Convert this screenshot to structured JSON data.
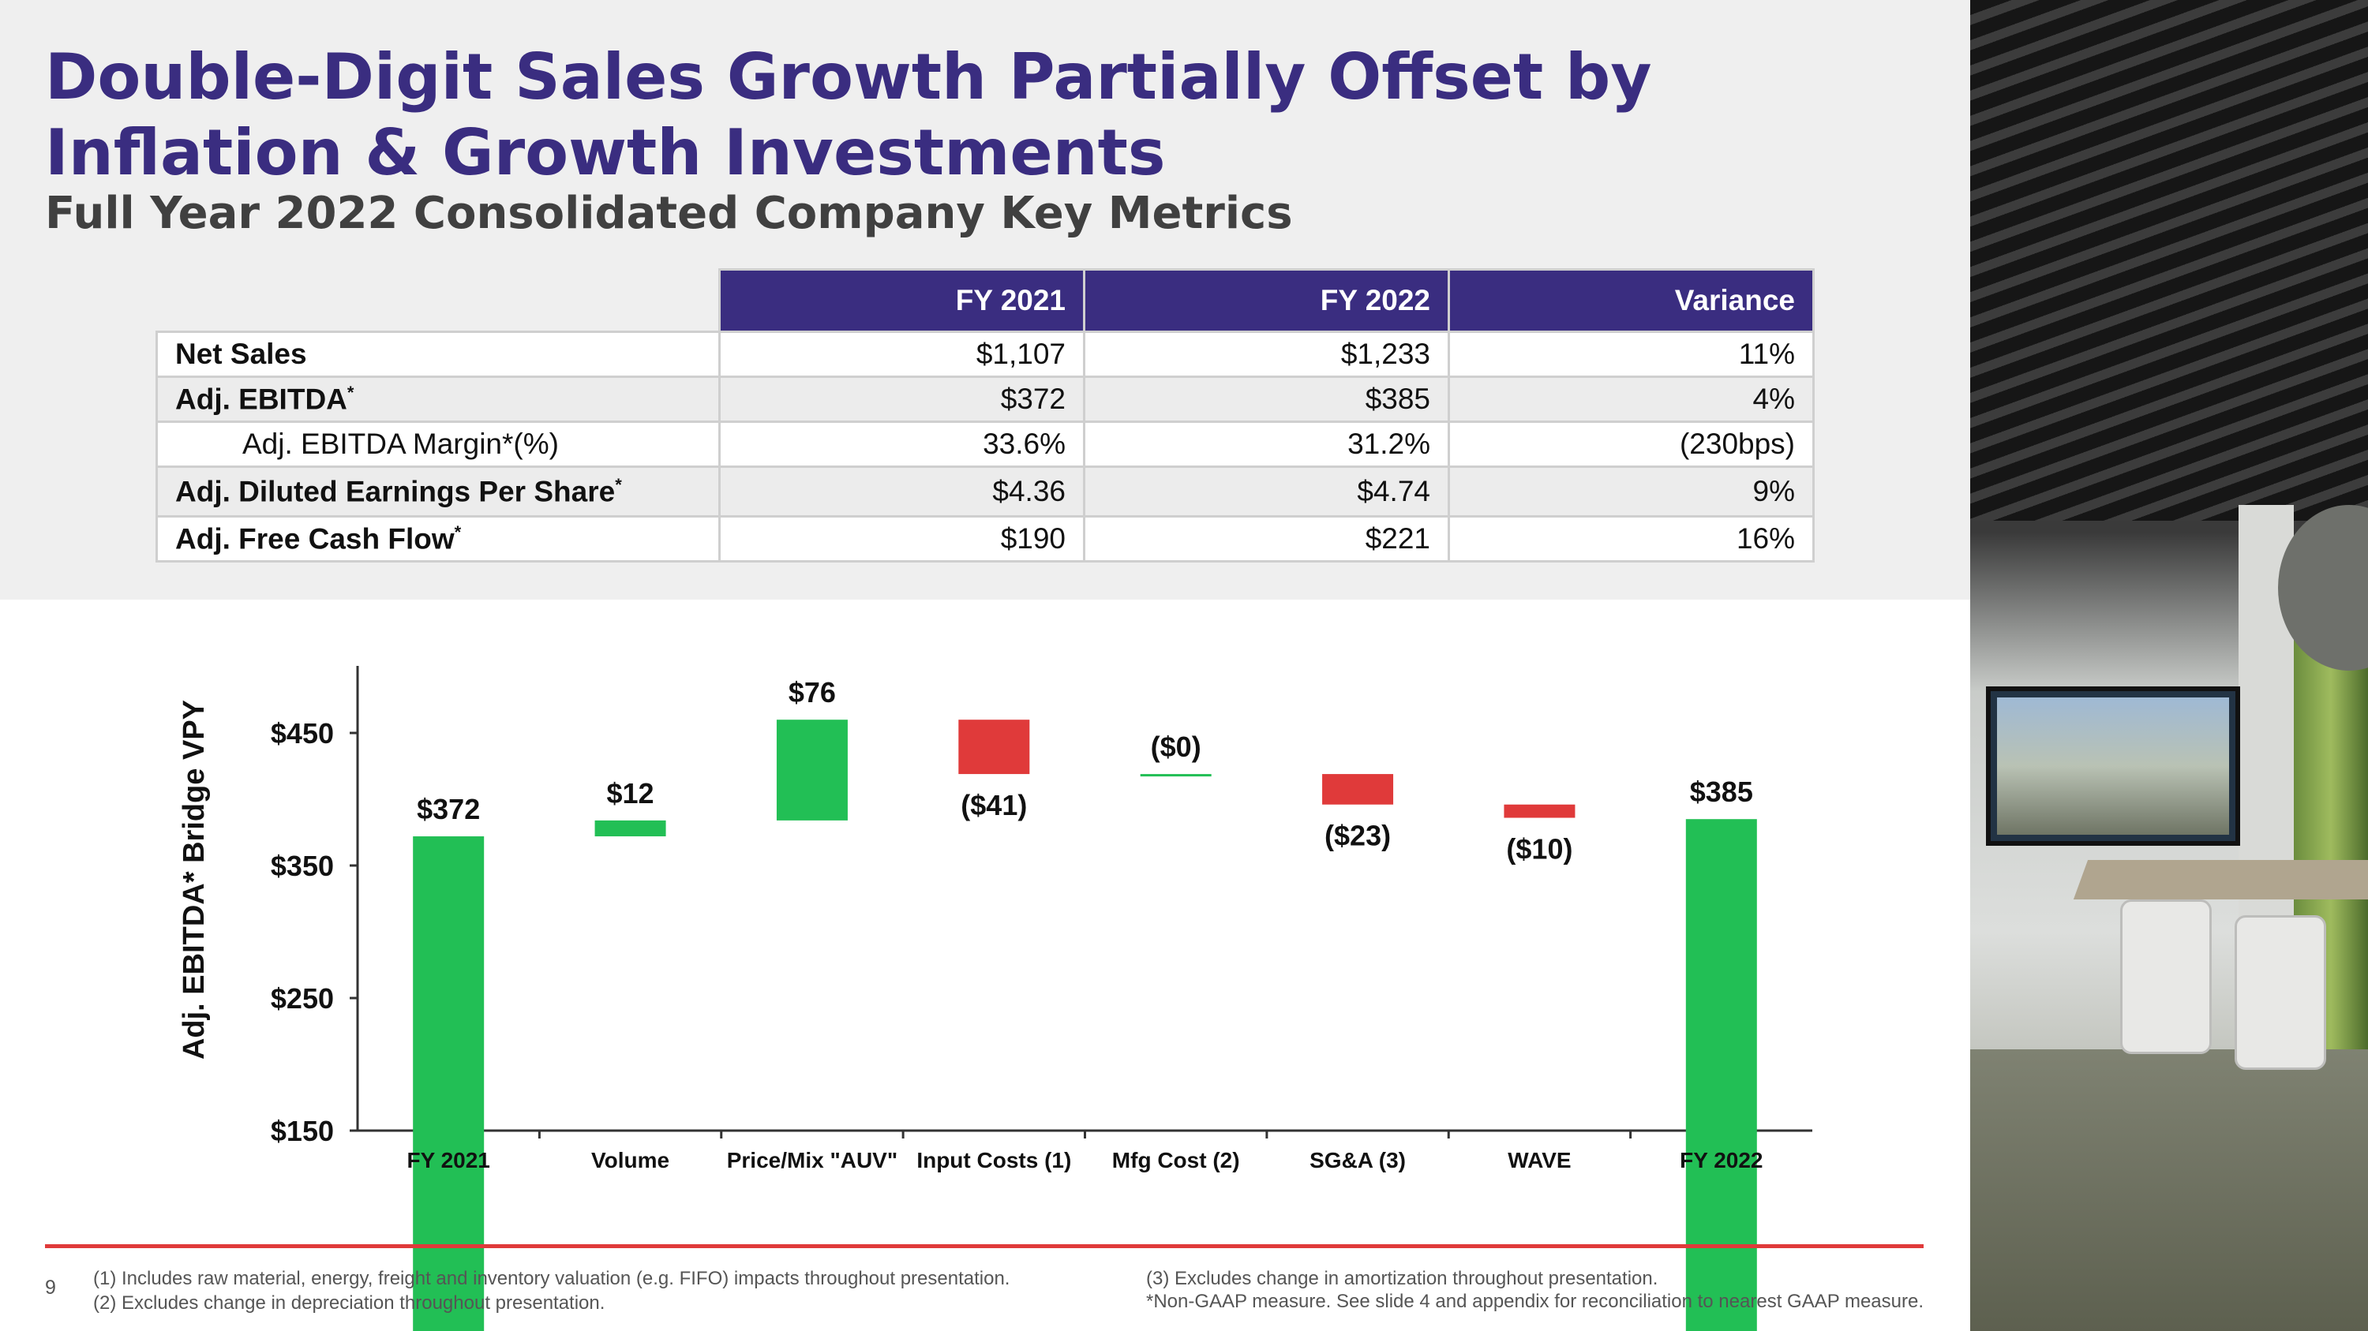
{
  "slide": {
    "title": "Double-Digit Sales Growth Partially Offset by Inflation & Growth Investments",
    "subtitle": "Full Year 2022 Consolidated Company Key Metrics",
    "page_number": "9"
  },
  "table": {
    "headers": [
      "FY 2021",
      "FY 2022",
      "Variance"
    ],
    "rows": [
      {
        "label": "Net Sales",
        "mark": "",
        "fy2021": "$1,107",
        "fy2022": "$1,233",
        "variance": "11%"
      },
      {
        "label": "Adj. EBITDA",
        "mark": "*",
        "fy2021": "$372",
        "fy2022": "$385",
        "variance": "4%"
      },
      {
        "label": "Adj. EBITDA Margin*(%)",
        "mark": "",
        "fy2021": "33.6%",
        "fy2022": "31.2%",
        "variance": "(230bps)"
      },
      {
        "label": "Adj. Diluted Earnings Per Share",
        "mark": "*",
        "fy2021": "$4.36",
        "fy2022": "$4.74",
        "variance": "9%"
      },
      {
        "label": "Adj. Free Cash Flow",
        "mark": "*",
        "fy2021": "$190",
        "fy2022": "$221",
        "variance": "16%"
      }
    ]
  },
  "chart_data": {
    "type": "bar",
    "subtype": "waterfall",
    "title": "",
    "ylabel": "Adj. EBITDA* Bridge VPY",
    "xlabel": "",
    "ylim": [
      150,
      500
    ],
    "yticks": [
      150,
      250,
      350,
      450
    ],
    "ytick_labels": [
      "$150",
      "$250",
      "$350",
      "$450"
    ],
    "categories": [
      "FY 2021",
      "Volume",
      "Price/Mix \"AUV\"",
      "Input Costs (1)",
      "Mfg Cost (2)",
      "SG&A (3)",
      "WAVE",
      "FY 2022"
    ],
    "values": [
      372,
      12,
      76,
      -41,
      0,
      -23,
      -10,
      385
    ],
    "kinds": [
      "total",
      "delta",
      "delta",
      "delta",
      "delta",
      "delta",
      "delta",
      "total"
    ],
    "data_labels": [
      "$372",
      "$12",
      "$76",
      "($41)",
      "($0)",
      "($23)",
      "($10)",
      "$385"
    ],
    "colors": {
      "increase": "#22bf55",
      "decrease": "#e03a3a",
      "total": "#22bf55"
    },
    "grid": false,
    "legend": "none"
  },
  "footnotes": [
    "(1) Includes raw material, energy, freight and inventory valuation (e.g. FIFO) impacts throughout presentation.",
    "(2) Excludes change in depreciation throughout presentation.",
    "(3) Excludes change in amortization throughout presentation.",
    "*Non-GAAP measure. See slide 4 and appendix for reconciliation to nearest GAAP measure."
  ],
  "colors": {
    "brand_purple": "#3a2d80",
    "rule_red": "#e03a3a"
  }
}
